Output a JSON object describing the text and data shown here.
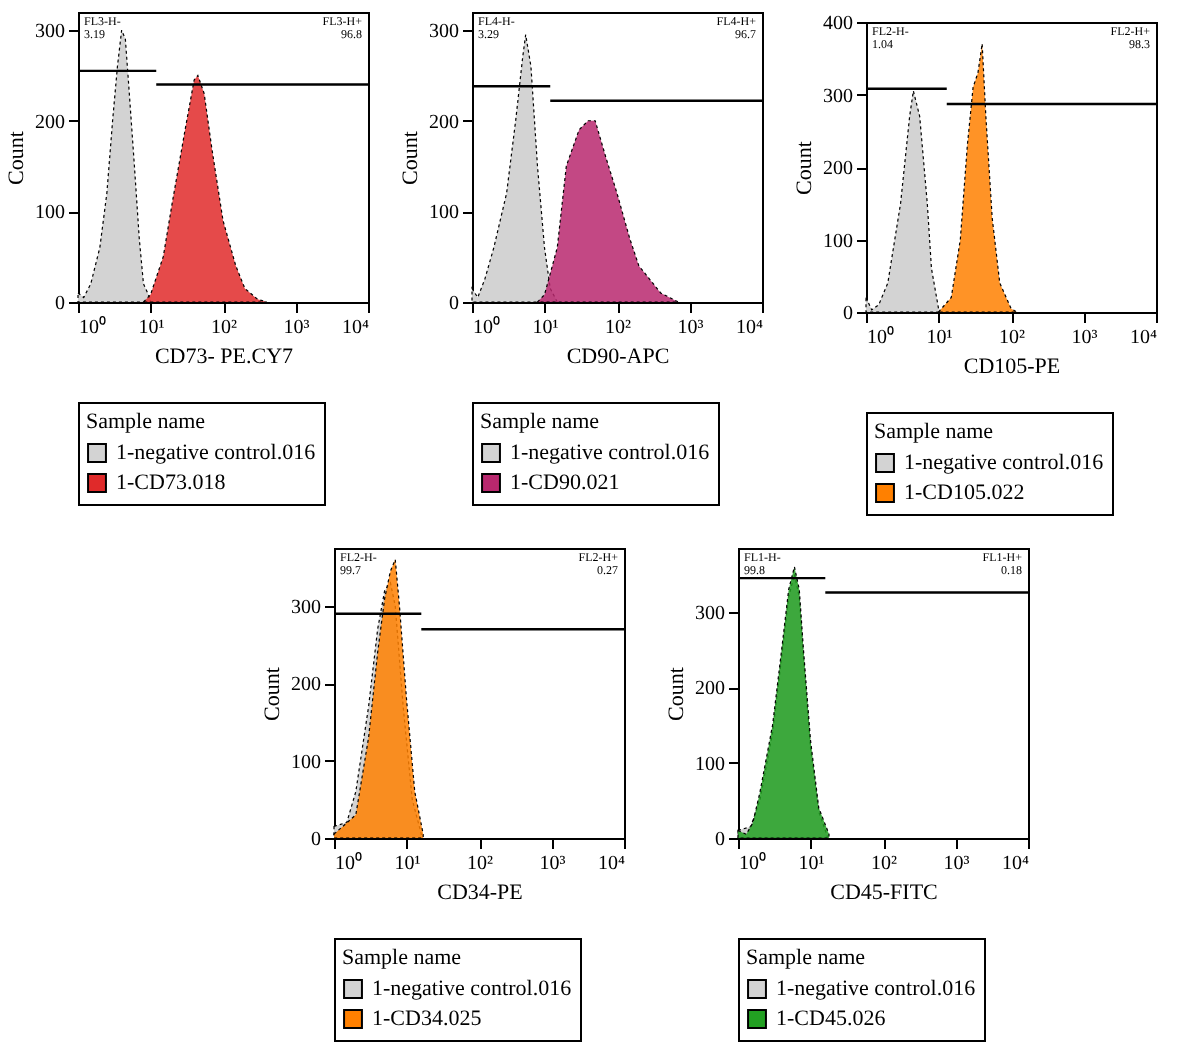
{
  "chart_data": [
    {
      "type": "area",
      "xlabel": "CD73- PE.CY7",
      "ylabel": "Count",
      "legend_title": "Sample name",
      "legend": "bottom",
      "log": "x",
      "xlim": [
        1,
        10000
      ],
      "xticks": [
        {
          "value": 1,
          "label": "10⁰"
        },
        {
          "value": 10,
          "label": "10¹"
        },
        {
          "value": 100,
          "label": "10²"
        },
        {
          "value": 1000,
          "label": "10³"
        },
        {
          "value": 10000,
          "label": "10⁴"
        }
      ],
      "ylim": [
        0,
        320
      ],
      "yticks": [
        0,
        100,
        200,
        300
      ],
      "annotations": [
        "FL3-H-",
        "3.19",
        "FL3-H+",
        "96.8"
      ],
      "series": [
        {
          "name": "1-negative control.016",
          "color": "#d3d3d3",
          "x": [
            1,
            1.2,
            1.5,
            2,
            2.5,
            3,
            3.5,
            4,
            4.5,
            5,
            6,
            7,
            8,
            10
          ],
          "values": [
            10,
            5,
            20,
            60,
            120,
            200,
            260,
            300,
            290,
            240,
            150,
            70,
            20,
            3
          ]
        },
        {
          "name": "1-CD73.018",
          "color": "#e02a2a",
          "x": [
            8,
            10,
            15,
            20,
            30,
            40,
            45,
            55,
            70,
            100,
            150,
            200,
            300,
            400
          ],
          "values": [
            0,
            8,
            50,
            110,
            190,
            245,
            250,
            230,
            170,
            90,
            40,
            15,
            3,
            0
          ]
        },
        {
          "type": "line",
          "color": "#000000",
          "x": [
            1,
            12
          ],
          "values": [
            255,
            255
          ]
        },
        {
          "type": "line",
          "color": "#000000",
          "x": [
            12,
            10000
          ],
          "values": [
            240,
            240
          ]
        }
      ]
    },
    {
      "type": "area",
      "xlabel": "CD90-APC",
      "ylabel": "Count",
      "legend_title": "Sample name",
      "legend": "bottom",
      "log": "x",
      "xlim": [
        1,
        10000
      ],
      "xticks": [
        {
          "value": 1,
          "label": "10⁰"
        },
        {
          "value": 10,
          "label": "10¹"
        },
        {
          "value": 100,
          "label": "10²"
        },
        {
          "value": 1000,
          "label": "10³"
        },
        {
          "value": 10000,
          "label": "10⁴"
        }
      ],
      "ylim": [
        0,
        320
      ],
      "yticks": [
        0,
        100,
        200,
        300
      ],
      "annotations": [
        "FL4-H-",
        "3.29",
        "FL4-H+",
        "96.7"
      ],
      "series": [
        {
          "name": "1-negative control.016",
          "color": "#d3d3d3",
          "x": [
            1,
            1.2,
            1.5,
            2,
            3,
            4,
            5,
            5.5,
            6.5,
            8,
            10,
            12,
            15
          ],
          "values": [
            15,
            5,
            25,
            60,
            120,
            200,
            270,
            295,
            260,
            150,
            60,
            15,
            0
          ]
        },
        {
          "name": "1-CD90.021",
          "color": "#b8286e",
          "x": [
            8,
            10,
            15,
            20,
            30,
            40,
            50,
            70,
            100,
            150,
            200,
            400,
            700
          ],
          "values": [
            0,
            8,
            60,
            150,
            190,
            200,
            200,
            160,
            120,
            70,
            40,
            10,
            0
          ]
        },
        {
          "type": "line",
          "color": "#000000",
          "x": [
            1,
            12
          ],
          "values": [
            238,
            238
          ]
        },
        {
          "type": "line",
          "color": "#000000",
          "x": [
            12,
            10000
          ],
          "values": [
            222,
            222
          ]
        }
      ]
    },
    {
      "type": "area",
      "xlabel": "CD105-PE",
      "ylabel": "Count",
      "legend_title": "Sample name",
      "legend": "bottom",
      "log": "x",
      "xlim": [
        1,
        10000
      ],
      "xticks": [
        {
          "value": 1,
          "label": "10⁰"
        },
        {
          "value": 10,
          "label": "10¹"
        },
        {
          "value": 100,
          "label": "10²"
        },
        {
          "value": 1000,
          "label": "10³"
        },
        {
          "value": 10000,
          "label": "10⁴"
        }
      ],
      "ylim": [
        0,
        400
      ],
      "yticks": [
        0,
        100,
        200,
        300,
        400
      ],
      "annotations": [
        "FL2-H-",
        "1.04",
        "FL2-H+",
        "98.3"
      ],
      "series": [
        {
          "name": "1-negative control.016",
          "color": "#d3d3d3",
          "x": [
            1,
            1.2,
            1.5,
            2,
            3,
            4,
            4.5,
            5.5,
            7,
            8,
            10
          ],
          "values": [
            20,
            3,
            10,
            40,
            150,
            270,
            305,
            270,
            150,
            60,
            5
          ]
        },
        {
          "name": "1-CD105.022",
          "color": "#ff8000",
          "x": [
            10,
            15,
            20,
            25,
            30,
            35,
            40,
            45,
            55,
            70,
            100,
            120
          ],
          "values": [
            0,
            20,
            100,
            230,
            310,
            330,
            370,
            270,
            130,
            40,
            5,
            0
          ]
        },
        {
          "type": "line",
          "color": "#000000",
          "x": [
            1,
            13
          ],
          "values": [
            308,
            308
          ]
        },
        {
          "type": "line",
          "color": "#000000",
          "x": [
            13,
            10000
          ],
          "values": [
            287,
            287
          ]
        }
      ]
    },
    {
      "type": "area",
      "xlabel": "CD34-PE",
      "ylabel": "Count",
      "legend_title": "Sample name",
      "legend": "bottom",
      "log": "x",
      "xlim": [
        1,
        10000
      ],
      "xticks": [
        {
          "value": 1,
          "label": "10⁰"
        },
        {
          "value": 10,
          "label": "10¹"
        },
        {
          "value": 100,
          "label": "10²"
        },
        {
          "value": 1000,
          "label": "10³"
        },
        {
          "value": 10000,
          "label": "10⁴"
        }
      ],
      "ylim": [
        0,
        375
      ],
      "yticks": [
        0,
        100,
        200,
        300
      ],
      "annotations": [
        "FL2-H-",
        "99.7",
        "FL2-H+",
        "0.27"
      ],
      "series": [
        {
          "name": "1-negative control.016",
          "color": "#d3d3d3",
          "x": [
            1,
            1.5,
            2,
            3,
            4,
            5,
            6,
            7,
            9,
            12,
            16
          ],
          "values": [
            15,
            20,
            60,
            170,
            270,
            320,
            330,
            300,
            170,
            50,
            5
          ]
        },
        {
          "name": "1-CD34.025",
          "color": "#ff8000",
          "x": [
            1,
            2,
            3,
            4,
            5,
            6,
            7,
            8,
            10,
            13,
            17
          ],
          "values": [
            5,
            30,
            130,
            240,
            310,
            345,
            360,
            300,
            180,
            60,
            5
          ]
        },
        {
          "type": "line",
          "color": "#000000",
          "x": [
            1,
            16
          ],
          "values": [
            290,
            290
          ]
        },
        {
          "type": "line",
          "color": "#000000",
          "x": [
            16,
            10000
          ],
          "values": [
            270,
            270
          ]
        }
      ]
    },
    {
      "type": "area",
      "xlabel": "CD45-FITC",
      "ylabel": "Count",
      "legend_title": "Sample name",
      "legend": "bottom",
      "log": "x",
      "xlim": [
        1,
        10000
      ],
      "xticks": [
        {
          "value": 1,
          "label": "10⁰"
        },
        {
          "value": 10,
          "label": "10¹"
        },
        {
          "value": 100,
          "label": "10²"
        },
        {
          "value": 1000,
          "label": "10³"
        },
        {
          "value": 10000,
          "label": "10⁴"
        }
      ],
      "ylim": [
        0,
        385
      ],
      "yticks": [
        0,
        100,
        200,
        300
      ],
      "annotations": [
        "FL1-H-",
        "99.8",
        "FL1-H+",
        "0.18"
      ],
      "series": [
        {
          "name": "1-negative control.016",
          "color": "#d3d3d3",
          "x": [
            1,
            1.5,
            2,
            3,
            4,
            5,
            6,
            7,
            8,
            10,
            13,
            17
          ],
          "values": [
            10,
            15,
            50,
            140,
            240,
            320,
            350,
            320,
            240,
            120,
            35,
            3
          ]
        },
        {
          "name": "1-CD45.026",
          "color": "#22a022",
          "x": [
            1,
            1.3,
            1.6,
            2,
            3,
            4,
            5,
            6,
            7,
            8,
            10,
            13,
            18
          ],
          "values": [
            10,
            5,
            20,
            60,
            150,
            250,
            330,
            360,
            330,
            250,
            130,
            40,
            5
          ]
        },
        {
          "type": "line",
          "color": "#000000",
          "x": [
            1,
            16
          ],
          "values": [
            345,
            345
          ]
        },
        {
          "type": "line",
          "color": "#000000",
          "x": [
            16,
            10000
          ],
          "values": [
            326,
            326
          ]
        }
      ]
    }
  ]
}
